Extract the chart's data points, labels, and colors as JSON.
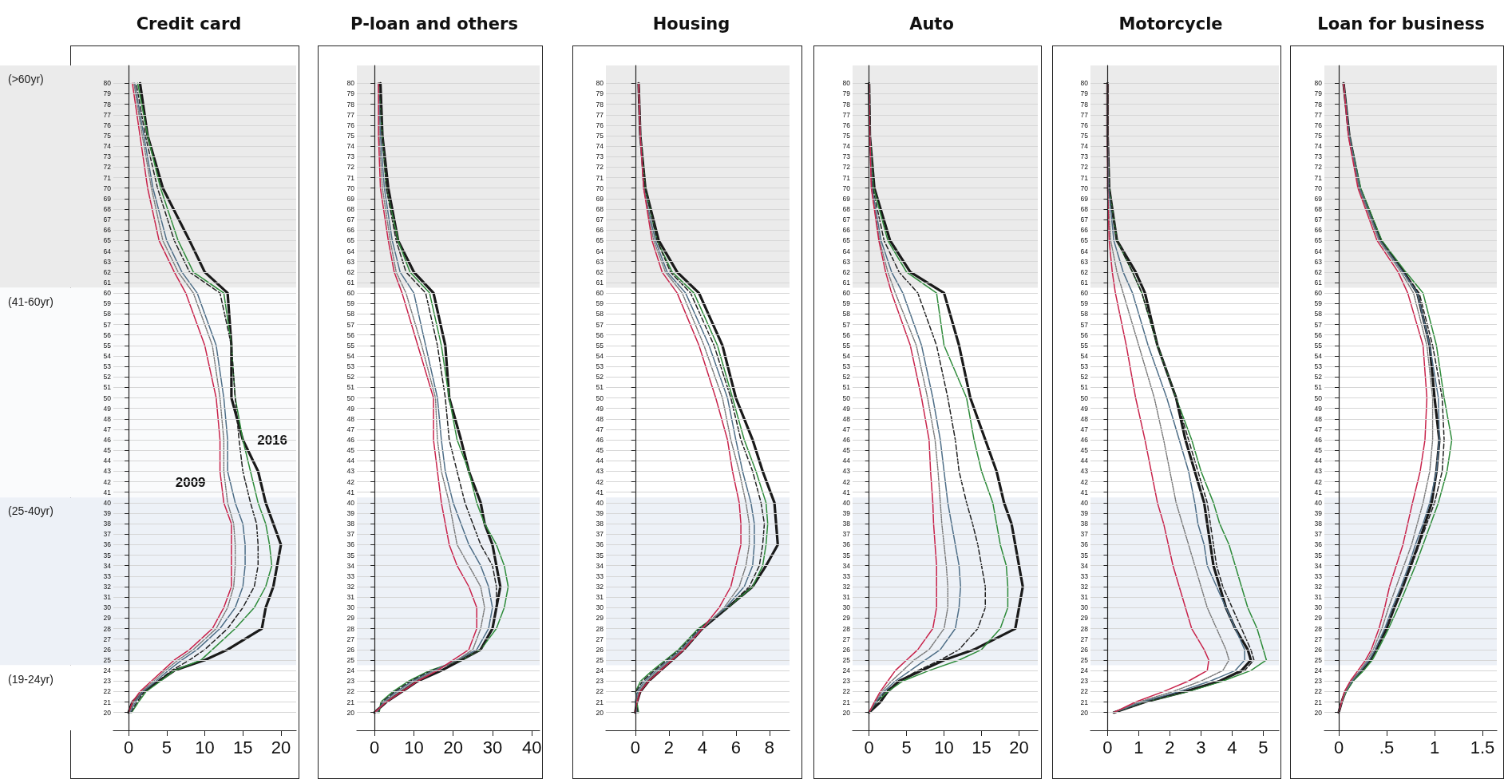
{
  "chart_data": [
    {
      "type": "line",
      "title": "Credit card",
      "orientation": "horizontal",
      "marker": "none",
      "grid": "y",
      "x": [
        20,
        21,
        22,
        23,
        24,
        25,
        26,
        28,
        30,
        32,
        34,
        36,
        38,
        40,
        43,
        46,
        50,
        55,
        60,
        62,
        65,
        70,
        75,
        80
      ],
      "xlim": [
        -2,
        22
      ],
      "xticks": [
        0,
        5,
        10,
        15,
        20
      ],
      "ylim": [
        18.3,
        81.7
      ],
      "yticks": [
        20,
        21,
        22,
        23,
        24,
        25,
        26,
        27,
        28,
        29,
        30,
        31,
        32,
        33,
        34,
        35,
        36,
        37,
        38,
        39,
        40,
        41,
        42,
        43,
        44,
        45,
        46,
        47,
        48,
        49,
        50,
        51,
        52,
        53,
        54,
        55,
        56,
        57,
        58,
        59,
        60,
        61,
        62,
        63,
        64,
        65,
        66,
        67,
        68,
        69,
        70,
        71,
        72,
        73,
        74,
        75,
        76,
        77,
        78,
        79,
        80
      ],
      "bands": [
        {
          "axis": "y",
          "from": 60.5,
          "to": 81.7,
          "label": "(>60yr)",
          "color": "#ebebeb"
        },
        {
          "axis": "y",
          "from": 40.5,
          "to": 60.5,
          "label": "(41-60yr)",
          "color": "#fafbfc"
        },
        {
          "axis": "y",
          "from": 24.5,
          "to": 40.5,
          "label": "(25-40yr)",
          "color": "#edf1f7"
        },
        {
          "axis": "y",
          "from": 18.3,
          "to": 24.5,
          "label": "(19-24yr)",
          "color": "#ffffff"
        }
      ],
      "annotations": [
        {
          "text": "2009",
          "x": 12,
          "y": 43
        },
        {
          "text": "2016",
          "x": 15,
          "y": 46
        }
      ],
      "series": [
        {
          "color": "#c8234b",
          "line_style": "solid",
          "values": [
            0,
            0.5,
            1.5,
            3,
            4.5,
            6,
            8,
            11,
            12.5,
            13.5,
            13.5,
            13.5,
            13.5,
            12.5,
            12,
            12,
            11.5,
            10,
            7.5,
            6,
            4,
            2.5,
            1.5,
            0.5
          ]
        },
        {
          "color": "#7a7a7a",
          "line_style": "dotted",
          "values": [
            0.1,
            0.7,
            1.7,
            3.3,
            4.8,
            6.5,
            8.5,
            11.5,
            13,
            13.8,
            14,
            14,
            13.8,
            13,
            12.5,
            12.5,
            12,
            11,
            8.5,
            6.5,
            4.5,
            3,
            1.8,
            0.7
          ]
        },
        {
          "color": "#4e6e87",
          "line_style": "solid",
          "values": [
            0.2,
            0.9,
            1.9,
            3.6,
            5.2,
            7,
            9,
            12,
            14,
            15,
            15.3,
            15.3,
            15,
            14,
            13,
            13,
            12.5,
            11.5,
            9,
            7,
            5,
            3.2,
            2,
            0.8
          ]
        },
        {
          "color": "#222222",
          "line_style": "dashed",
          "values": [
            0.3,
            1.1,
            2.1,
            3.9,
            5.6,
            8,
            10,
            13,
            15,
            16.5,
            17,
            17,
            16.8,
            16,
            15,
            14.5,
            14,
            13.5,
            12,
            8,
            6,
            3.8,
            2.2,
            1
          ]
        },
        {
          "color": "#2e8b3a",
          "line_style": "solid",
          "values": [
            0.4,
            1.3,
            2.3,
            4.2,
            6,
            9.5,
            11,
            14,
            16.5,
            18,
            18.8,
            18.5,
            18,
            17,
            16,
            15,
            14,
            13.5,
            12.5,
            8.5,
            6.5,
            4.2,
            2.5,
            1.2
          ]
        },
        {
          "color": "#1a1a1a",
          "line_style": "solid",
          "values": [
            0,
            0.5,
            2,
            4,
            6,
            10,
            13,
            17.5,
            18,
            19,
            19.5,
            20,
            19,
            18,
            17,
            15,
            13.5,
            13.5,
            13,
            10,
            8,
            4.5,
            2.5,
            1.5
          ]
        }
      ]
    },
    {
      "type": "line",
      "title": "P-loan and others",
      "orientation": "horizontal",
      "marker": "none",
      "grid": "y",
      "x": [
        20,
        21,
        22,
        23,
        24,
        25,
        26,
        28,
        30,
        32,
        34,
        36,
        38,
        40,
        43,
        46,
        50,
        55,
        60,
        62,
        65,
        70,
        75,
        80
      ],
      "xlim": [
        -4.5,
        42
      ],
      "xticks": [
        0,
        10,
        20,
        30,
        40
      ],
      "ylim": [
        18.3,
        81.7
      ],
      "yticks": [
        20,
        21,
        22,
        23,
        24,
        25,
        26,
        27,
        28,
        29,
        30,
        31,
        32,
        33,
        34,
        35,
        36,
        37,
        38,
        39,
        40,
        41,
        42,
        43,
        44,
        45,
        46,
        47,
        48,
        49,
        50,
        51,
        52,
        53,
        54,
        55,
        56,
        57,
        58,
        59,
        60,
        61,
        62,
        63,
        64,
        65,
        66,
        67,
        68,
        69,
        70,
        71,
        72,
        73,
        74,
        75,
        76,
        77,
        78,
        79,
        80
      ],
      "bands": [
        {
          "axis": "y",
          "from": 60.5,
          "to": 81.7,
          "color": "#ebebeb"
        },
        {
          "axis": "y",
          "from": 24.5,
          "to": 40.5,
          "color": "#edf1f7"
        }
      ],
      "series": [
        {
          "color": "#c8234b",
          "line_style": "solid",
          "values": [
            0,
            3,
            7,
            11,
            16,
            20,
            24,
            26,
            26,
            24,
            21,
            19,
            18,
            17,
            16,
            15,
            15,
            11,
            7,
            5,
            3.5,
            1.5,
            1,
            1
          ]
        },
        {
          "color": "#7a7a7a",
          "line_style": "dotted",
          "values": [
            0.3,
            2.6,
            6.3,
            10.3,
            15.5,
            21,
            25,
            27,
            28,
            27,
            24,
            21,
            20,
            19,
            17,
            16,
            15.5,
            12,
            8,
            5.5,
            4,
            2,
            1.2,
            1
          ]
        },
        {
          "color": "#4e6e87",
          "line_style": "solid",
          "values": [
            0.6,
            2.2,
            5.7,
            9.7,
            15,
            21,
            26,
            29,
            30,
            29,
            27,
            24,
            22,
            20,
            18,
            17,
            16,
            13,
            10,
            6.5,
            4.5,
            2.5,
            1.5,
            1
          ]
        },
        {
          "color": "#222222",
          "line_style": "dashed",
          "values": [
            0.9,
            1.9,
            5.2,
            9.2,
            14.5,
            22,
            27,
            30,
            31,
            31,
            30,
            27,
            25,
            23,
            21,
            19,
            18,
            16,
            13,
            8,
            5.5,
            3,
            2,
            1
          ]
        },
        {
          "color": "#2e8b3a",
          "line_style": "solid",
          "values": [
            1.2,
            1.6,
            4.7,
            8.7,
            14,
            22,
            27,
            31,
            33,
            34,
            33,
            31,
            28,
            26,
            24,
            21,
            19,
            17,
            14,
            9,
            6,
            3,
            2,
            1
          ]
        },
        {
          "color": "#1a1a1a",
          "line_style": "solid",
          "values": [
            0,
            3,
            7,
            11,
            17,
            22,
            27,
            30,
            31,
            32,
            31,
            30,
            28,
            27,
            24,
            22,
            19,
            18,
            15,
            10,
            6,
            3.5,
            2,
            1.5
          ]
        }
      ]
    },
    {
      "type": "line",
      "title": "Housing",
      "orientation": "horizontal",
      "marker": "none",
      "grid": "y",
      "x": [
        20,
        21,
        22,
        23,
        24,
        25,
        26,
        28,
        30,
        32,
        34,
        36,
        38,
        40,
        43,
        46,
        50,
        55,
        60,
        62,
        65,
        70,
        75,
        80
      ],
      "xlim": [
        -1.75,
        9.2
      ],
      "xticks": [
        0,
        2,
        4,
        6,
        8
      ],
      "ylim": [
        18.3,
        81.7
      ],
      "yticks": [
        20,
        21,
        22,
        23,
        24,
        25,
        26,
        27,
        28,
        29,
        30,
        31,
        32,
        33,
        34,
        35,
        36,
        37,
        38,
        39,
        40,
        41,
        42,
        43,
        44,
        45,
        46,
        47,
        48,
        49,
        50,
        51,
        52,
        53,
        54,
        55,
        56,
        57,
        58,
        59,
        60,
        61,
        62,
        63,
        64,
        65,
        66,
        67,
        68,
        69,
        70,
        71,
        72,
        73,
        74,
        75,
        76,
        77,
        78,
        79,
        80
      ],
      "bands": [
        {
          "axis": "y",
          "from": 60.5,
          "to": 81.7,
          "color": "#ebebeb"
        },
        {
          "axis": "y",
          "from": 24.5,
          "to": 40.5,
          "color": "#edf1f7"
        }
      ],
      "series": [
        {
          "color": "#c8234b",
          "line_style": "solid",
          "values": [
            0,
            0.1,
            0.3,
            0.8,
            1.5,
            2.2,
            2.9,
            4,
            5,
            5.7,
            6,
            6.3,
            6.3,
            6.2,
            5.8,
            5.5,
            4.8,
            3.8,
            2.5,
            1.6,
            1,
            0.5,
            0.3,
            0.2
          ]
        },
        {
          "color": "#7a7a7a",
          "line_style": "dotted",
          "values": [
            0.05,
            0.05,
            0.22,
            0.68,
            1.38,
            2.1,
            2.82,
            4,
            5.3,
            6.2,
            6.6,
            6.8,
            6.8,
            6.6,
            6.2,
            5.7,
            5.2,
            4.1,
            2.8,
            1.8,
            1.1,
            0.5,
            0.3,
            0.2
          ]
        },
        {
          "color": "#4e6e87",
          "line_style": "solid",
          "values": [
            0.1,
            0,
            0.14,
            0.56,
            1.26,
            2,
            2.74,
            3.92,
            5.4,
            6.5,
            7,
            7.1,
            7.1,
            6.9,
            6.4,
            6,
            5.5,
            4.4,
            3,
            1.9,
            1.2,
            0.5,
            0.3,
            0.2
          ]
        },
        {
          "color": "#222222",
          "line_style": "dashed",
          "values": [
            0.15,
            0.05,
            0.06,
            0.44,
            1.14,
            1.9,
            2.66,
            3.84,
            5.5,
            6.8,
            7.4,
            7.6,
            7.7,
            7.5,
            7,
            6.3,
            5.7,
            4.7,
            3.3,
            2.1,
            1.3,
            0.6,
            0.3,
            0.2
          ]
        },
        {
          "color": "#2e8b3a",
          "line_style": "solid",
          "values": [
            0.2,
            0.1,
            0.02,
            0.32,
            1.02,
            1.8,
            2.58,
            3.76,
            5.5,
            7,
            7.6,
            7.8,
            7.9,
            7.8,
            7.2,
            6.5,
            5.8,
            4.9,
            3.5,
            2.2,
            1.3,
            0.6,
            0.3,
            0.2
          ]
        },
        {
          "color": "#1a1a1a",
          "line_style": "solid",
          "values": [
            0,
            0.1,
            0.3,
            0.8,
            1.5,
            2.2,
            2.9,
            4,
            5.5,
            7,
            7.8,
            8.5,
            8.4,
            8.3,
            7.6,
            7,
            6,
            5.2,
            3.8,
            2.5,
            1.4,
            0.6,
            0.3,
            0.2
          ]
        }
      ]
    },
    {
      "type": "line",
      "title": "Auto",
      "orientation": "horizontal",
      "marker": "none",
      "grid": "y",
      "x": [
        20,
        21,
        22,
        23,
        24,
        25,
        26,
        28,
        30,
        32,
        34,
        36,
        38,
        40,
        43,
        46,
        50,
        55,
        60,
        62,
        65,
        70,
        75,
        80
      ],
      "xlim": [
        -2.2,
        22.5
      ],
      "xticks": [
        0,
        5,
        10,
        15,
        20
      ],
      "ylim": [
        18.3,
        81.7
      ],
      "yticks": [
        20,
        21,
        22,
        23,
        24,
        25,
        26,
        27,
        28,
        29,
        30,
        31,
        32,
        33,
        34,
        35,
        36,
        37,
        38,
        39,
        40,
        41,
        42,
        43,
        44,
        45,
        46,
        47,
        48,
        49,
        50,
        51,
        52,
        53,
        54,
        55,
        56,
        57,
        58,
        59,
        60,
        61,
        62,
        63,
        64,
        65,
        66,
        67,
        68,
        69,
        70,
        71,
        72,
        73,
        74,
        75,
        76,
        77,
        78,
        79,
        80
      ],
      "bands": [
        {
          "axis": "y",
          "from": 60.5,
          "to": 81.7,
          "color": "#ebebeb"
        },
        {
          "axis": "y",
          "from": 24.5,
          "to": 40.5,
          "color": "#edf1f7"
        }
      ],
      "series": [
        {
          "color": "#c8234b",
          "line_style": "solid",
          "values": [
            0,
            0.7,
            1.5,
            2.5,
            3.5,
            5,
            6.5,
            8.5,
            9,
            9,
            9,
            8.8,
            8.6,
            8.5,
            8.2,
            8,
            7,
            5.5,
            3,
            2.2,
            1.3,
            0.3,
            0.1,
            0
          ]
        },
        {
          "color": "#7a7a7a",
          "line_style": "dotted",
          "values": [
            0,
            0.8,
            1.7,
            3,
            4.5,
            6,
            8,
            10,
            10.5,
            10.5,
            10.3,
            10,
            9.7,
            9.5,
            9.2,
            8.8,
            7.8,
            6.3,
            3.5,
            2.5,
            1.4,
            0.3,
            0.1,
            0
          ]
        },
        {
          "color": "#4e6e87",
          "line_style": "solid",
          "values": [
            0,
            0.9,
            2,
            3.5,
            5.5,
            7.5,
            9.5,
            11.5,
            12,
            12.2,
            12,
            11.5,
            11,
            10.5,
            10,
            9.5,
            8.5,
            7,
            4.5,
            3,
            1.6,
            0.4,
            0.1,
            0
          ]
        },
        {
          "color": "#222222",
          "line_style": "dashed",
          "values": [
            0,
            1,
            2.2,
            4,
            6.5,
            9.5,
            12,
            14.5,
            15.5,
            15.5,
            15,
            14.5,
            13.8,
            13,
            12,
            11.5,
            10.5,
            9,
            6.5,
            4,
            2,
            0.5,
            0.1,
            0
          ]
        },
        {
          "color": "#2e8b3a",
          "line_style": "solid",
          "values": [
            0,
            1,
            2.5,
            4.5,
            8,
            12,
            15,
            17.5,
            18.5,
            18.5,
            18.3,
            17.5,
            17,
            16.5,
            15,
            14,
            13,
            10,
            9,
            5,
            2.5,
            0.6,
            0.1,
            0
          ]
        },
        {
          "color": "#1a1a1a",
          "line_style": "solid",
          "values": [
            0,
            1.5,
            2.5,
            4,
            7,
            10,
            14,
            19.5,
            20,
            20.5,
            20,
            19.5,
            19,
            18,
            17,
            15.5,
            13.5,
            12,
            10,
            5.5,
            2.8,
            0.7,
            0.1,
            0
          ]
        }
      ]
    },
    {
      "type": "line",
      "title": "Motorcycle",
      "orientation": "horizontal",
      "marker": "none",
      "grid": "y",
      "x": [
        20,
        21,
        22,
        23,
        24,
        25,
        26,
        28,
        30,
        32,
        34,
        36,
        38,
        40,
        43,
        46,
        50,
        55,
        60,
        62,
        65,
        70,
        75,
        80
      ],
      "xlim": [
        -0.55,
        5.5
      ],
      "xticks": [
        0,
        1,
        2,
        3,
        4,
        5
      ],
      "ylim": [
        18.3,
        81.7
      ],
      "yticks": [
        20,
        21,
        22,
        23,
        24,
        25,
        26,
        27,
        28,
        29,
        30,
        31,
        32,
        33,
        34,
        35,
        36,
        37,
        38,
        39,
        40,
        41,
        42,
        43,
        44,
        45,
        46,
        47,
        48,
        49,
        50,
        51,
        52,
        53,
        54,
        55,
        56,
        57,
        58,
        59,
        60,
        61,
        62,
        63,
        64,
        65,
        66,
        67,
        68,
        69,
        70,
        71,
        72,
        73,
        74,
        75,
        76,
        77,
        78,
        79,
        80
      ],
      "bands": [
        {
          "axis": "y",
          "from": 60.5,
          "to": 81.7,
          "color": "#ebebeb"
        },
        {
          "axis": "y",
          "from": 24.5,
          "to": 40.5,
          "color": "#edf1f7"
        }
      ],
      "series": [
        {
          "color": "#c8234b",
          "line_style": "solid",
          "values": [
            0.2,
            0.9,
            1.8,
            2.6,
            3.2,
            3.25,
            3.1,
            2.7,
            2.5,
            2.3,
            2.1,
            1.95,
            1.8,
            1.6,
            1.4,
            1.2,
            0.9,
            0.6,
            0.25,
            0.15,
            0.05,
            0,
            0,
            0
          ]
        },
        {
          "color": "#7a7a7a",
          "line_style": "dotted",
          "values": [
            0.2,
            1,
            2.1,
            3,
            3.7,
            3.9,
            3.8,
            3.5,
            3.2,
            3,
            2.8,
            2.6,
            2.4,
            2.2,
            2,
            1.8,
            1.5,
            1,
            0.5,
            0.3,
            0.1,
            0,
            0,
            0
          ]
        },
        {
          "color": "#4e6e87",
          "line_style": "solid",
          "values": [
            0.2,
            1.1,
            2.3,
            3.3,
            4.1,
            4.4,
            4.4,
            4.1,
            3.8,
            3.5,
            3.2,
            3.1,
            2.9,
            2.8,
            2.6,
            2.3,
            1.9,
            1.3,
            0.8,
            0.5,
            0.2,
            0.03,
            0,
            0
          ]
        },
        {
          "color": "#222222",
          "line_style": "dashed",
          "values": [
            0.2,
            1.2,
            2.5,
            3.6,
            4.4,
            4.7,
            4.6,
            4.3,
            4,
            3.7,
            3.5,
            3.4,
            3.3,
            3.2,
            2.9,
            2.6,
            2.2,
            1.6,
            1.1,
            0.8,
            0.3,
            0.05,
            0,
            0
          ]
        },
        {
          "color": "#2e8b3a",
          "line_style": "solid",
          "values": [
            0.2,
            1.2,
            2.6,
            3.7,
            4.6,
            5.1,
            5,
            4.8,
            4.5,
            4.3,
            4.1,
            3.9,
            3.6,
            3.4,
            3,
            2.7,
            2.2,
            1.6,
            1.1,
            0.8,
            0.3,
            0.05,
            0,
            0
          ]
        },
        {
          "color": "#1a1a1a",
          "line_style": "solid",
          "values": [
            0.2,
            1.2,
            2.5,
            3.6,
            4.3,
            4.6,
            4.5,
            4.1,
            3.8,
            3.6,
            3.4,
            3.3,
            3.2,
            3.1,
            2.8,
            2.5,
            2.2,
            1.6,
            1.2,
            0.9,
            0.3,
            0.05,
            0,
            0
          ]
        }
      ]
    },
    {
      "type": "line",
      "title": "Loan for business",
      "orientation": "horizontal",
      "marker": "none",
      "grid": "y",
      "x": [
        20,
        21,
        22,
        23,
        24,
        25,
        26,
        28,
        30,
        32,
        34,
        36,
        38,
        40,
        43,
        46,
        50,
        55,
        60,
        62,
        65,
        70,
        75,
        80
      ],
      "xlim": [
        -0.15,
        1.65
      ],
      "xticks": [
        0,
        {
          "value": 0.5,
          "label": ".5"
        },
        1,
        1.5
      ],
      "ylim": [
        18.3,
        81.7
      ],
      "yticks": [
        20,
        21,
        22,
        23,
        24,
        25,
        26,
        27,
        28,
        29,
        30,
        31,
        32,
        33,
        34,
        35,
        36,
        37,
        38,
        39,
        40,
        41,
        42,
        43,
        44,
        45,
        46,
        47,
        48,
        49,
        50,
        51,
        52,
        53,
        54,
        55,
        56,
        57,
        58,
        59,
        60,
        61,
        62,
        63,
        64,
        65,
        66,
        67,
        68,
        69,
        70,
        71,
        72,
        73,
        74,
        75,
        76,
        77,
        78,
        79,
        80
      ],
      "bands": [
        {
          "axis": "y",
          "from": 60.5,
          "to": 81.7,
          "color": "#ebebeb"
        },
        {
          "axis": "y",
          "from": 24.5,
          "to": 40.5,
          "color": "#edf1f7"
        }
      ],
      "series": [
        {
          "color": "#c8234b",
          "line_style": "solid",
          "values": [
            0,
            0.03,
            0.06,
            0.12,
            0.2,
            0.28,
            0.34,
            0.42,
            0.48,
            0.53,
            0.6,
            0.67,
            0.72,
            0.77,
            0.85,
            0.9,
            0.92,
            0.88,
            0.72,
            0.62,
            0.4,
            0.2,
            0.1,
            0.05
          ]
        },
        {
          "color": "#7a7a7a",
          "line_style": "dotted",
          "values": [
            0,
            0.03,
            0.07,
            0.13,
            0.22,
            0.3,
            0.36,
            0.45,
            0.52,
            0.6,
            0.68,
            0.76,
            0.82,
            0.88,
            0.95,
            0.98,
            0.98,
            0.92,
            0.78,
            0.65,
            0.42,
            0.21,
            0.1,
            0.05
          ]
        },
        {
          "color": "#4e6e87",
          "line_style": "solid",
          "values": [
            0,
            0.03,
            0.07,
            0.14,
            0.23,
            0.32,
            0.38,
            0.48,
            0.56,
            0.65,
            0.73,
            0.8,
            0.88,
            0.95,
            1.02,
            1.05,
            1.04,
            0.95,
            0.82,
            0.67,
            0.43,
            0.22,
            0.11,
            0.05
          ]
        },
        {
          "color": "#222222",
          "line_style": "dashed",
          "values": [
            0,
            0.03,
            0.07,
            0.14,
            0.24,
            0.33,
            0.39,
            0.5,
            0.58,
            0.67,
            0.76,
            0.84,
            0.92,
            1,
            1.08,
            1.1,
            1.08,
            0.98,
            0.84,
            0.68,
            0.44,
            0.22,
            0.11,
            0.05
          ]
        },
        {
          "color": "#2e8b3a",
          "line_style": "solid",
          "values": [
            0,
            0.03,
            0.08,
            0.15,
            0.26,
            0.35,
            0.41,
            0.52,
            0.62,
            0.71,
            0.8,
            0.88,
            0.96,
            1.04,
            1.13,
            1.18,
            1.1,
            1.02,
            0.88,
            0.7,
            0.45,
            0.23,
            0.11,
            0.05
          ]
        },
        {
          "color": "#1a1a1a",
          "line_style": "solid",
          "values": [
            0,
            0.03,
            0.07,
            0.14,
            0.24,
            0.33,
            0.39,
            0.5,
            0.58,
            0.67,
            0.75,
            0.83,
            0.9,
            0.97,
            1.02,
            1.05,
            1,
            0.95,
            0.82,
            0.68,
            0.44,
            0.22,
            0.11,
            0.05
          ]
        }
      ]
    }
  ]
}
